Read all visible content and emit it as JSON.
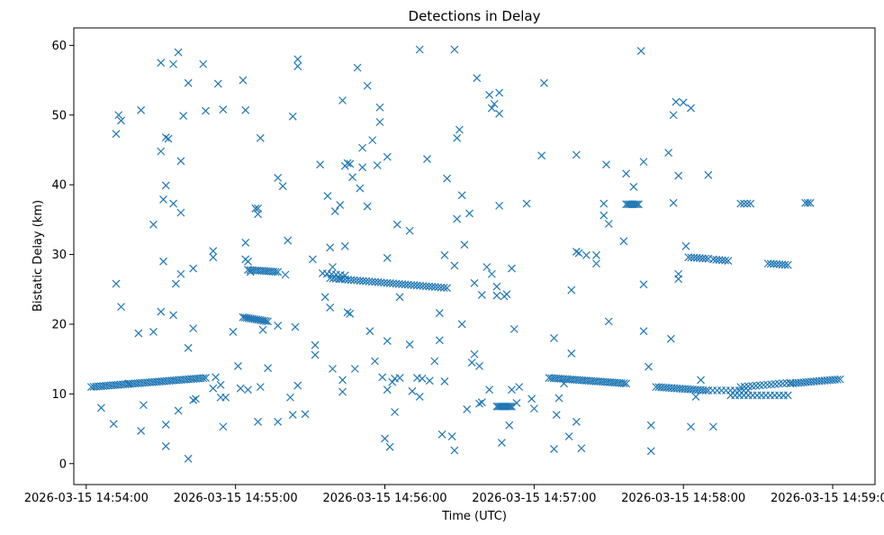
{
  "chart_data": {
    "type": "scatter",
    "title": "Detections in Delay",
    "xlabel": "Time (UTC)",
    "ylabel": "Bistatic Delay (km)",
    "xlim": [
      -5,
      317
    ],
    "ylim": [
      -3,
      62.5
    ],
    "x_ticks": [
      {
        "value": 0,
        "label": "2026-03-15 14:54:00"
      },
      {
        "value": 60,
        "label": "2026-03-15 14:55:00"
      },
      {
        "value": 120,
        "label": "2026-03-15 14:56:00"
      },
      {
        "value": 180,
        "label": "2026-03-15 14:57:00"
      },
      {
        "value": 240,
        "label": "2026-03-15 14:58:00"
      },
      {
        "value": 300,
        "label": "2026-03-15 14:59:00"
      }
    ],
    "y_ticks": [
      0,
      10,
      20,
      30,
      40,
      50,
      60
    ],
    "x_units": "seconds after 2026-03-15 14:54:00 UTC",
    "marker": "x",
    "color": "#1f77b4",
    "grid": false,
    "tracks": [
      {
        "x_start": 2,
        "x_end": 48,
        "y_start": 11.0,
        "y_end": 12.3,
        "count": 48
      },
      {
        "x_start": 63,
        "x_end": 73,
        "y_start": 21.0,
        "y_end": 20.4,
        "count": 14
      },
      {
        "x_start": 65,
        "x_end": 77,
        "y_start": 27.8,
        "y_end": 27.5,
        "count": 14
      },
      {
        "x_start": 95,
        "x_end": 104,
        "y_start": 27.3,
        "y_end": 27.0,
        "count": 6
      },
      {
        "x_start": 98,
        "x_end": 145,
        "y_start": 26.6,
        "y_end": 25.2,
        "count": 40
      },
      {
        "x_start": 165,
        "x_end": 171,
        "y_start": 8.2,
        "y_end": 8.2,
        "count": 10
      },
      {
        "x_start": 186,
        "x_end": 217,
        "y_start": 12.3,
        "y_end": 11.5,
        "count": 34
      },
      {
        "x_start": 217,
        "x_end": 222,
        "y_start": 37.2,
        "y_end": 37.2,
        "count": 8
      },
      {
        "x_start": 229,
        "x_end": 249,
        "y_start": 11.0,
        "y_end": 10.5,
        "count": 20
      },
      {
        "x_start": 250,
        "x_end": 266,
        "y_start": 10.5,
        "y_end": 10.5,
        "count": 10
      },
      {
        "x_start": 259,
        "x_end": 282,
        "y_start": 9.8,
        "y_end": 9.8,
        "count": 14
      },
      {
        "x_start": 263,
        "x_end": 283,
        "y_start": 11.0,
        "y_end": 11.6,
        "count": 14
      },
      {
        "x_start": 283,
        "x_end": 303,
        "y_start": 11.5,
        "y_end": 12.1,
        "count": 20
      },
      {
        "x_start": 242,
        "x_end": 250,
        "y_start": 29.6,
        "y_end": 29.4,
        "count": 8
      },
      {
        "x_start": 252,
        "x_end": 258,
        "y_start": 29.3,
        "y_end": 29.1,
        "count": 6
      },
      {
        "x_start": 274,
        "x_end": 282,
        "y_start": 28.7,
        "y_end": 28.5,
        "count": 8
      },
      {
        "x_start": 263,
        "x_end": 267,
        "y_start": 37.3,
        "y_end": 37.3,
        "count": 4
      },
      {
        "x_start": 289,
        "x_end": 291,
        "y_start": 37.4,
        "y_end": 37.4,
        "count": 3
      }
    ],
    "points": [
      [
        6,
        8
      ],
      [
        11,
        5.7
      ],
      [
        12,
        47.3
      ],
      [
        12,
        25.8
      ],
      [
        13,
        50
      ],
      [
        14,
        49.2
      ],
      [
        14,
        22.5
      ],
      [
        17,
        11.5
      ],
      [
        21,
        18.7
      ],
      [
        22,
        50.7
      ],
      [
        22,
        4.7
      ],
      [
        23,
        8.4
      ],
      [
        27,
        34.3
      ],
      [
        27,
        18.9
      ],
      [
        30,
        44.8
      ],
      [
        30,
        57.5
      ],
      [
        30,
        21.8
      ],
      [
        31,
        37.9
      ],
      [
        31,
        29
      ],
      [
        32,
        46.8
      ],
      [
        32,
        39.9
      ],
      [
        32,
        5.6
      ],
      [
        32,
        2.5
      ],
      [
        33,
        46.6
      ],
      [
        35,
        37.3
      ],
      [
        35,
        57.3
      ],
      [
        35,
        21.3
      ],
      [
        36,
        25.8
      ],
      [
        37,
        59
      ],
      [
        37,
        7.6
      ],
      [
        38,
        43.4
      ],
      [
        38,
        27.2
      ],
      [
        38,
        36
      ],
      [
        39,
        49.9
      ],
      [
        41,
        54.6
      ],
      [
        41,
        16.6
      ],
      [
        41,
        0.7
      ],
      [
        43,
        19.4
      ],
      [
        43,
        28
      ],
      [
        43,
        9.1
      ],
      [
        44,
        9.3
      ],
      [
        47,
        57.3
      ],
      [
        48,
        50.6
      ],
      [
        51,
        30.5
      ],
      [
        51,
        29.6
      ],
      [
        51,
        10.8
      ],
      [
        52,
        12.4
      ],
      [
        53,
        54.5
      ],
      [
        54,
        11.3
      ],
      [
        54,
        9.5
      ],
      [
        55,
        50.8
      ],
      [
        55,
        5.3
      ],
      [
        56,
        9.5
      ],
      [
        59,
        18.9
      ],
      [
        61,
        14
      ],
      [
        62,
        10.8
      ],
      [
        63,
        55
      ],
      [
        64,
        50.7
      ],
      [
        64,
        31.7
      ],
      [
        64,
        29.3
      ],
      [
        65,
        29
      ],
      [
        65,
        10.6
      ],
      [
        66,
        27.5
      ],
      [
        68,
        36.6
      ],
      [
        69,
        36.6
      ],
      [
        69,
        35.8
      ],
      [
        69,
        6
      ],
      [
        70,
        46.7
      ],
      [
        70,
        11
      ],
      [
        71,
        19.2
      ],
      [
        73,
        13.7
      ],
      [
        77,
        41
      ],
      [
        77,
        19.8
      ],
      [
        77,
        6
      ],
      [
        79,
        39.8
      ],
      [
        80,
        27.1
      ],
      [
        81,
        32
      ],
      [
        82,
        9.5
      ],
      [
        83,
        49.8
      ],
      [
        83,
        7
      ],
      [
        84,
        19.6
      ],
      [
        85,
        58
      ],
      [
        85,
        57
      ],
      [
        85,
        11.2
      ],
      [
        88,
        7.1
      ],
      [
        91,
        29.3
      ],
      [
        92,
        17
      ],
      [
        92,
        15.6
      ],
      [
        94,
        42.9
      ],
      [
        96,
        23.9
      ],
      [
        97,
        38.4
      ],
      [
        98,
        31
      ],
      [
        98,
        22.4
      ],
      [
        99,
        28.2
      ],
      [
        99,
        13.6
      ],
      [
        100,
        36.2
      ],
      [
        102,
        37.1
      ],
      [
        102,
        26.5
      ],
      [
        103,
        52.1
      ],
      [
        103,
        12
      ],
      [
        103,
        10.3
      ],
      [
        104,
        42.7
      ],
      [
        104,
        31.2
      ],
      [
        105,
        43.1
      ],
      [
        105,
        21.7
      ],
      [
        106,
        21.5
      ],
      [
        106,
        43
      ],
      [
        107,
        41.1
      ],
      [
        108,
        13.6
      ],
      [
        109,
        56.8
      ],
      [
        110,
        39.5
      ],
      [
        111,
        45.3
      ],
      [
        111,
        42.5
      ],
      [
        113,
        36.9
      ],
      [
        113,
        54.2
      ],
      [
        114,
        19
      ],
      [
        115,
        46.4
      ],
      [
        116,
        14.7
      ],
      [
        117,
        42.8
      ],
      [
        118,
        51.1
      ],
      [
        118,
        49
      ],
      [
        119,
        12.4
      ],
      [
        120,
        3.6
      ],
      [
        121,
        44
      ],
      [
        121,
        29.5
      ],
      [
        121,
        17.6
      ],
      [
        121,
        10.6
      ],
      [
        122,
        2.4
      ],
      [
        123,
        11.7
      ],
      [
        124,
        7.4
      ],
      [
        124,
        12.2
      ],
      [
        125,
        34.3
      ],
      [
        126,
        23.9
      ],
      [
        126,
        12.3
      ],
      [
        130,
        33.4
      ],
      [
        130,
        17.1
      ],
      [
        131,
        10.4
      ],
      [
        133,
        12.3
      ],
      [
        134,
        59.4
      ],
      [
        134,
        9.6
      ],
      [
        135,
        12.2
      ],
      [
        137,
        43.7
      ],
      [
        138,
        11.9
      ],
      [
        140,
        14.7
      ],
      [
        142,
        21.6
      ],
      [
        142,
        17.7
      ],
      [
        143,
        4.2
      ],
      [
        144,
        11.8
      ],
      [
        144,
        29.9
      ],
      [
        145,
        40.9
      ],
      [
        147,
        3.9
      ],
      [
        148,
        59.4
      ],
      [
        148,
        1.9
      ],
      [
        148,
        28.4
      ],
      [
        149,
        35.1
      ],
      [
        149,
        46.7
      ],
      [
        150,
        47.9
      ],
      [
        151,
        38.5
      ],
      [
        151,
        20
      ],
      [
        152,
        31.4
      ],
      [
        153,
        7.8
      ],
      [
        154,
        35.9
      ],
      [
        155,
        14.5
      ],
      [
        156,
        15.7
      ],
      [
        156,
        25.9
      ],
      [
        157,
        55.3
      ],
      [
        158,
        14
      ],
      [
        158,
        8.6
      ],
      [
        159,
        24.2
      ],
      [
        159,
        8.8
      ],
      [
        161,
        28.2
      ],
      [
        162,
        52.9
      ],
      [
        162,
        10.6
      ],
      [
        163,
        27.2
      ],
      [
        163,
        51
      ],
      [
        164,
        51.6
      ],
      [
        165,
        24.1
      ],
      [
        165,
        25.4
      ],
      [
        166,
        53.2
      ],
      [
        166,
        50.2
      ],
      [
        166,
        37
      ],
      [
        167,
        3
      ],
      [
        168,
        24
      ],
      [
        169,
        24.3
      ],
      [
        170,
        5.5
      ],
      [
        171,
        28
      ],
      [
        171,
        10.6
      ],
      [
        172,
        19.3
      ],
      [
        173,
        8.7
      ],
      [
        174,
        11
      ],
      [
        177,
        37.3
      ],
      [
        179,
        9.3
      ],
      [
        180,
        7.9
      ],
      [
        183,
        44.2
      ],
      [
        184,
        54.6
      ],
      [
        188,
        18
      ],
      [
        188,
        2.1
      ],
      [
        189,
        7
      ],
      [
        190,
        9.4
      ],
      [
        192,
        11.5
      ],
      [
        194,
        3.9
      ],
      [
        195,
        15.8
      ],
      [
        195,
        24.9
      ],
      [
        197,
        44.3
      ],
      [
        197,
        6
      ],
      [
        197,
        30.4
      ],
      [
        198,
        30.2
      ],
      [
        199,
        2.2
      ],
      [
        201,
        29.9
      ],
      [
        205,
        29.9
      ],
      [
        205,
        28.7
      ],
      [
        208,
        37.3
      ],
      [
        208,
        35.6
      ],
      [
        209,
        42.9
      ],
      [
        210,
        34.4
      ],
      [
        210,
        20.4
      ],
      [
        216,
        31.9
      ],
      [
        217,
        41.6
      ],
      [
        220,
        39.7
      ],
      [
        223,
        59.2
      ],
      [
        224,
        43.3
      ],
      [
        224,
        19
      ],
      [
        224,
        25.7
      ],
      [
        226,
        13.9
      ],
      [
        227,
        5.5
      ],
      [
        227,
        1.8
      ],
      [
        234,
        44.6
      ],
      [
        235,
        17.9
      ],
      [
        236,
        37.4
      ],
      [
        236,
        50
      ],
      [
        237,
        51.9
      ],
      [
        238,
        26.5
      ],
      [
        238,
        41.3
      ],
      [
        238,
        27.2
      ],
      [
        240,
        51.8
      ],
      [
        241,
        31.2
      ],
      [
        243,
        51
      ],
      [
        243,
        5.3
      ],
      [
        245,
        9.6
      ],
      [
        247,
        12
      ],
      [
        250,
        41.4
      ],
      [
        252,
        5.3
      ]
    ]
  }
}
